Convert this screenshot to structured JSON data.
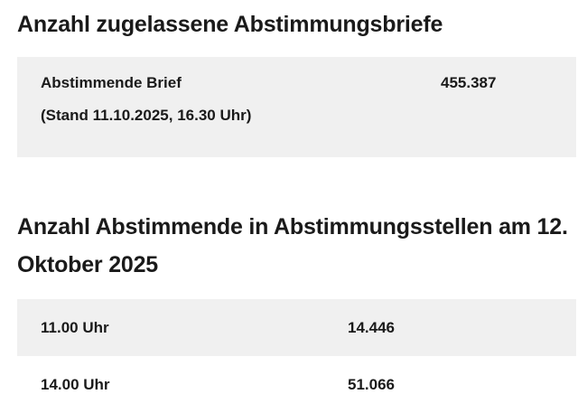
{
  "section1": {
    "title": "Anzahl zugelassene Abstimmungsbriefe",
    "label": "Abstimmende Brief",
    "value": "455.387",
    "note": "(Stand 11.10.2025, 16.30 Uhr)"
  },
  "section2": {
    "title": "Anzahl Abstimmende in Abstimmungsstellen am 12. Oktober 2025",
    "rows": [
      {
        "time": "11.00 Uhr",
        "count": "14.446"
      },
      {
        "time": "14.00 Uhr",
        "count": "51.066"
      }
    ]
  },
  "colors": {
    "background": "#ffffff",
    "panel": "#f0f0f0",
    "text": "#1a1a1a"
  }
}
